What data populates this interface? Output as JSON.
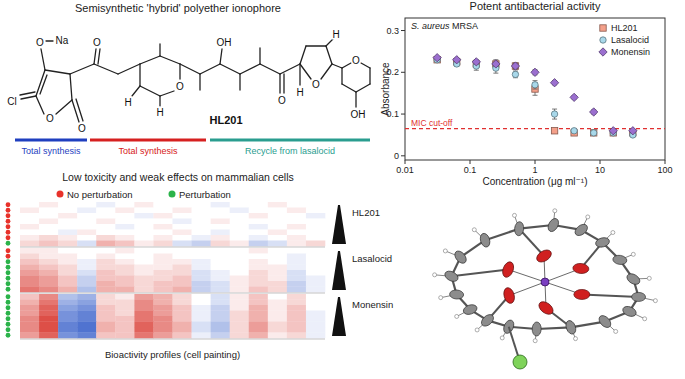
{
  "chart_data": {
    "type": "scatter",
    "title": "Potent antibacterial activity",
    "subtitle": "S. aureus MRSA",
    "xlabel": "Concentration (μg ml⁻¹)",
    "ylabel": "Absorbance",
    "log": "x",
    "xlim": [
      0.01,
      100
    ],
    "ylim": [
      -0.01,
      0.33
    ],
    "xticks": [
      0.01,
      0.1,
      1,
      10,
      100
    ],
    "yticks": [
      0,
      0.1,
      0.2,
      0.3
    ],
    "legend": "top-right",
    "x": [
      0.03125,
      0.0625,
      0.125,
      0.25,
      0.5,
      1,
      2,
      4,
      8,
      16,
      32
    ],
    "series": [
      {
        "name": "HL201",
        "color": "#f4a08a",
        "marker": "square",
        "values": [
          0.23,
          0.225,
          0.22,
          0.22,
          0.215,
          0.16,
          0.06,
          0.055,
          0.055,
          0.055,
          0.055
        ],
        "errors": [
          0.005,
          0.006,
          0.008,
          0.01,
          0.008,
          0.015,
          0.004,
          0.003,
          0.003,
          0.003,
          0.004
        ]
      },
      {
        "name": "Lasalocid",
        "color": "#a8d8ea",
        "marker": "circle",
        "values": [
          0.23,
          0.22,
          0.215,
          0.21,
          0.195,
          0.17,
          0.1,
          0.06,
          0.055,
          0.055,
          0.05
        ],
        "errors": [
          0.004,
          0.006,
          0.01,
          0.012,
          0.008,
          0.01,
          0.012,
          0.004,
          0.003,
          0.003,
          0.003
        ]
      },
      {
        "name": "Monensin",
        "color": "#9b6fcf",
        "marker": "diamond",
        "values": [
          0.235,
          0.23,
          0.225,
          0.22,
          0.215,
          0.2,
          0.175,
          0.14,
          0.105,
          0.06,
          0.06
        ],
        "errors": [
          0.003,
          0.004,
          0.005,
          0.005,
          0.006,
          0.006,
          0.005,
          0.004,
          0.005,
          0.004,
          0.003
        ]
      }
    ],
    "reference_lines": [
      {
        "y": 0.065,
        "label": "MIC cut-off",
        "color": "#e03030",
        "line_style": "dashed"
      }
    ]
  },
  "structure": {
    "title": "Semisynthetic 'hybrid' polyether ionophore",
    "compound": "HL201",
    "atoms": [
      "O",
      "Na",
      "Cl",
      "O",
      "O",
      "O",
      "O",
      "H",
      "H",
      "OH",
      "O",
      "O",
      "H",
      "O",
      "H",
      "OH"
    ],
    "segments": [
      {
        "label": "Total synthesis",
        "color": "#1f3fbf"
      },
      {
        "label": "Total synthesis",
        "color": "#d62020"
      },
      {
        "label": "Recycle from lasalocid",
        "color": "#2a9d8f"
      }
    ]
  },
  "heatmap_panel": {
    "title": "Low toxicity and weak effects on mammalian cells",
    "key": [
      {
        "label": "No perturbation",
        "color": "#e8322b"
      },
      {
        "label": "Perturbation",
        "color": "#2bb34a"
      }
    ],
    "xlabel": "Bioactivity profiles (cell painting)",
    "groups": [
      {
        "name": "HL201",
        "perturbation": [
          false,
          false,
          false,
          false,
          false,
          false,
          false,
          true
        ],
        "cells": [
          [
            0,
            0.1,
            0,
            0,
            -0.1,
            0,
            0.1,
            0,
            0,
            0,
            -0.1,
            0,
            0,
            0.1,
            0,
            0
          ],
          [
            0.1,
            0,
            0,
            -0.1,
            0,
            0.1,
            0,
            0,
            0.1,
            0,
            0,
            -0.1,
            0,
            0,
            0.1,
            0
          ],
          [
            0,
            0,
            0.1,
            0,
            0,
            0,
            -0.1,
            0.1,
            0,
            0,
            0,
            0,
            0.1,
            0,
            0,
            -0.1
          ],
          [
            0,
            0.1,
            0,
            0,
            0.1,
            0,
            0,
            0,
            -0.1,
            0,
            0.1,
            0,
            0,
            0,
            0,
            0
          ],
          [
            0.1,
            0,
            0,
            0,
            0,
            -0.1,
            0,
            0.1,
            0,
            0,
            0,
            0,
            -0.1,
            0,
            0.1,
            0
          ],
          [
            0,
            0,
            -0.1,
            0.1,
            0,
            0,
            0,
            0,
            0.1,
            0,
            -0.1,
            0,
            0,
            0.1,
            0,
            0
          ],
          [
            0.1,
            0.2,
            0.1,
            0,
            0.2,
            0.1,
            0,
            0.1,
            0,
            -0.1,
            0.1,
            0,
            -0.1,
            0,
            0.1,
            0
          ],
          [
            0.2,
            0.3,
            0.2,
            -0.2,
            0.4,
            0.3,
            0.1,
            0.2,
            -0.2,
            -0.3,
            0.2,
            0.1,
            -0.3,
            -0.2,
            0.1,
            0.2
          ]
        ]
      },
      {
        "name": "Lasalocid",
        "perturbation": [
          false,
          false,
          true,
          true,
          true,
          true,
          true,
          true
        ],
        "cells": [
          [
            0.1,
            0.1,
            0,
            0,
            0,
            0.1,
            0,
            0,
            0,
            0,
            0,
            0,
            0.1,
            0,
            0,
            0
          ],
          [
            0.2,
            0.1,
            0.1,
            0,
            0.1,
            0,
            0,
            0.1,
            0,
            0,
            0,
            0,
            0,
            0,
            -0.1,
            0
          ],
          [
            0.3,
            0.2,
            0.1,
            -0.1,
            0.2,
            0.1,
            0,
            0.1,
            0.1,
            -0.1,
            0,
            0,
            0.1,
            0,
            -0.1,
            0
          ],
          [
            0.4,
            0.3,
            0.2,
            -0.1,
            0.2,
            0.2,
            0.1,
            0.1,
            0.2,
            -0.1,
            0,
            0,
            0.1,
            0.1,
            -0.1,
            0
          ],
          [
            0.5,
            0.4,
            0.2,
            -0.2,
            0.3,
            0.2,
            0.1,
            0.2,
            0.2,
            -0.2,
            -0.1,
            0,
            0.2,
            0.1,
            -0.2,
            0
          ],
          [
            0.6,
            0.5,
            0.3,
            -0.3,
            0.3,
            0.3,
            0.2,
            0.2,
            0.3,
            -0.2,
            -0.1,
            0.1,
            0.2,
            0.1,
            -0.2,
            -0.1
          ],
          [
            0.6,
            0.5,
            0.3,
            -0.3,
            0.4,
            0.3,
            0.2,
            0.3,
            0.3,
            -0.3,
            -0.2,
            0.1,
            0.2,
            0.2,
            -0.3,
            -0.1
          ],
          [
            0.7,
            0.6,
            0.4,
            -0.4,
            0.4,
            0.4,
            0.2,
            0.3,
            0.4,
            -0.3,
            -0.2,
            0.1,
            0.3,
            0.2,
            -0.3,
            -0.1
          ]
        ]
      },
      {
        "name": "Monensin",
        "perturbation": [
          true,
          true,
          true,
          true,
          true,
          true,
          true,
          true
        ],
        "cells": [
          [
            0.3,
            0.6,
            -0.4,
            -0.5,
            0.2,
            0.1,
            0.5,
            0.4,
            0.2,
            0,
            -0.2,
            0.1,
            0.3,
            0,
            0.2,
            0
          ],
          [
            0.4,
            0.7,
            -0.5,
            -0.6,
            0.2,
            0.2,
            0.6,
            0.4,
            0.2,
            0,
            -0.2,
            0.1,
            0.3,
            0.1,
            0.2,
            0
          ],
          [
            0.5,
            0.8,
            -0.6,
            -0.7,
            0.3,
            0.2,
            0.6,
            0.5,
            0.3,
            -0.1,
            -0.3,
            0.1,
            0.4,
            0.1,
            0.3,
            0
          ],
          [
            0.5,
            0.8,
            -0.7,
            -0.8,
            0.3,
            0.2,
            0.7,
            0.5,
            0.3,
            -0.1,
            -0.3,
            0.2,
            0.4,
            0.1,
            0.3,
            -0.1
          ],
          [
            0.6,
            0.9,
            -0.7,
            -0.8,
            0.3,
            0.3,
            0.7,
            0.6,
            0.3,
            -0.1,
            -0.3,
            0.2,
            0.4,
            0.1,
            0.3,
            -0.1
          ],
          [
            0.6,
            0.9,
            -0.8,
            -0.9,
            0.4,
            0.3,
            0.8,
            0.6,
            0.4,
            -0.2,
            -0.4,
            0.2,
            0.5,
            0.2,
            0.3,
            -0.1
          ],
          [
            0.6,
            0.9,
            -0.8,
            -0.9,
            0.4,
            0.3,
            0.8,
            0.6,
            0.4,
            -0.2,
            -0.4,
            0.2,
            0.5,
            0.2,
            0.3,
            -0.1
          ],
          [
            0.5,
            0.8,
            -0.7,
            -0.8,
            0.3,
            0.3,
            0.7,
            0.5,
            0.3,
            -0.1,
            -0.3,
            0.2,
            0.4,
            0.1,
            0.2,
            -0.1
          ]
        ]
      }
    ]
  }
}
